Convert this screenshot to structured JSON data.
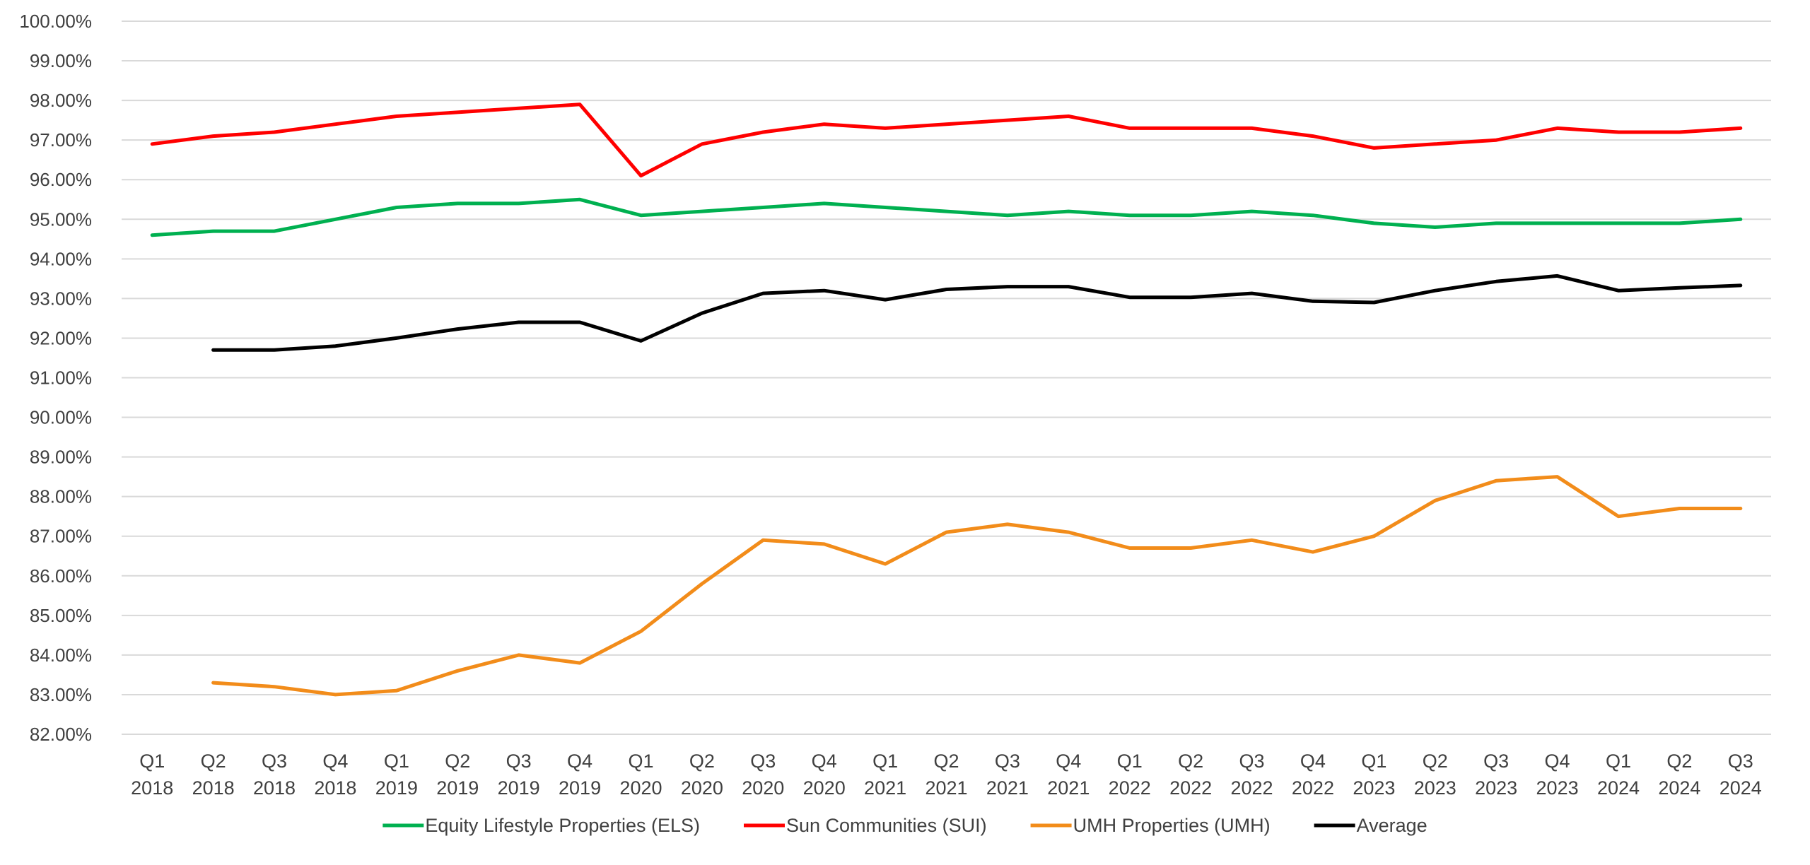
{
  "chart_data": {
    "type": "line",
    "title": "",
    "xlabel": "",
    "ylabel": "",
    "ylim": [
      82,
      100
    ],
    "ytick_step": 1,
    "grid": true,
    "legend_position": "bottom",
    "categories": [
      [
        "Q1",
        "2018"
      ],
      [
        "Q2",
        "2018"
      ],
      [
        "Q3",
        "2018"
      ],
      [
        "Q4",
        "2018"
      ],
      [
        "Q1",
        "2019"
      ],
      [
        "Q2",
        "2019"
      ],
      [
        "Q3",
        "2019"
      ],
      [
        "Q4",
        "2019"
      ],
      [
        "Q1",
        "2020"
      ],
      [
        "Q2",
        "2020"
      ],
      [
        "Q3",
        "2020"
      ],
      [
        "Q4",
        "2020"
      ],
      [
        "Q1",
        "2021"
      ],
      [
        "Q2",
        "2021"
      ],
      [
        "Q3",
        "2021"
      ],
      [
        "Q4",
        "2021"
      ],
      [
        "Q1",
        "2022"
      ],
      [
        "Q2",
        "2022"
      ],
      [
        "Q3",
        "2022"
      ],
      [
        "Q4",
        "2022"
      ],
      [
        "Q1",
        "2023"
      ],
      [
        "Q2",
        "2023"
      ],
      [
        "Q3",
        "2023"
      ],
      [
        "Q4",
        "2023"
      ],
      [
        "Q1",
        "2024"
      ],
      [
        "Q2",
        "2024"
      ],
      [
        "Q3",
        "2024"
      ]
    ],
    "series": [
      {
        "name": "Equity Lifestyle Properties (ELS)",
        "color": "#00b050",
        "values": [
          94.6,
          94.7,
          94.7,
          95.0,
          95.3,
          95.4,
          95.4,
          95.5,
          95.1,
          95.2,
          95.3,
          95.4,
          95.3,
          95.2,
          95.1,
          95.2,
          95.1,
          95.1,
          95.2,
          95.1,
          94.9,
          94.8,
          94.9,
          94.9,
          94.9,
          94.9,
          95.0
        ]
      },
      {
        "name": "Sun Communities (SUI)",
        "color": "#ff0000",
        "values": [
          96.9,
          97.1,
          97.2,
          97.4,
          97.6,
          97.7,
          97.8,
          97.9,
          96.1,
          96.9,
          97.2,
          97.4,
          97.3,
          97.4,
          97.5,
          97.6,
          97.3,
          97.3,
          97.3,
          97.1,
          96.8,
          96.9,
          97.0,
          97.3,
          97.2,
          97.2,
          97.3
        ]
      },
      {
        "name": "UMH Properties (UMH)",
        "color": "#f28c1a",
        "values": [
          null,
          83.3,
          83.2,
          83.0,
          83.1,
          83.6,
          84.0,
          83.8,
          84.6,
          85.8,
          86.9,
          86.8,
          86.3,
          87.1,
          87.3,
          87.1,
          86.7,
          86.7,
          86.9,
          86.6,
          87.0,
          87.9,
          88.4,
          88.5,
          87.5,
          87.7,
          87.7
        ]
      },
      {
        "name": "Average",
        "color": "#000000",
        "values": [
          null,
          91.7,
          91.7,
          91.8,
          92.0,
          92.23,
          92.4,
          92.4,
          91.93,
          92.63,
          93.13,
          93.2,
          92.97,
          93.23,
          93.3,
          93.3,
          93.03,
          93.03,
          93.13,
          92.93,
          92.9,
          93.2,
          93.43,
          93.57,
          93.2,
          93.27,
          93.33
        ]
      }
    ]
  }
}
